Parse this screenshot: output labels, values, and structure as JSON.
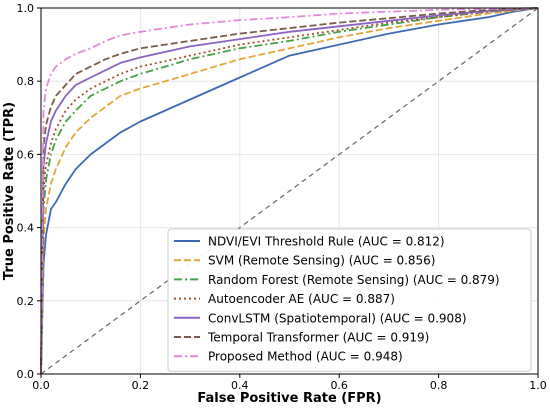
{
  "chart_data": {
    "type": "line",
    "xlabel": "False Positive Rate (FPR)",
    "ylabel": "True Positive Rate (TPR)",
    "xlim": [
      0.0,
      1.0
    ],
    "ylim": [
      0.0,
      1.0
    ],
    "xticks": [
      "0.0",
      "0.2",
      "0.4",
      "0.6",
      "0.8",
      "1.0"
    ],
    "yticks": [
      "0.0",
      "0.2",
      "0.4",
      "0.6",
      "0.8",
      "1.0"
    ],
    "grid": true,
    "legend_position": "lower-right",
    "reference_line": {
      "x": [
        0,
        1
      ],
      "y": [
        0,
        1
      ],
      "style": "dashed",
      "color": "#666666"
    },
    "series": [
      {
        "name": "NDVI/EVI Threshold Rule (AUC = 0.812)",
        "color": "#3d6ab5",
        "dash": "solid",
        "x": [
          0,
          0.005,
          0.01,
          0.02,
          0.03,
          0.05,
          0.07,
          0.1,
          0.13,
          0.16,
          0.2,
          0.25,
          0.3,
          0.35,
          0.4,
          0.45,
          0.5,
          0.6,
          0.7,
          0.8,
          0.9,
          0.95,
          1.0
        ],
        "y": [
          0,
          0.3,
          0.38,
          0.45,
          0.47,
          0.52,
          0.56,
          0.6,
          0.63,
          0.66,
          0.69,
          0.72,
          0.75,
          0.78,
          0.81,
          0.84,
          0.87,
          0.9,
          0.93,
          0.955,
          0.975,
          0.99,
          1.0
        ]
      },
      {
        "name": "SVM (Remote Sensing) (AUC = 0.856)",
        "color": "#e6a43a",
        "dash": "dashed",
        "x": [
          0,
          0.005,
          0.01,
          0.02,
          0.03,
          0.05,
          0.07,
          0.1,
          0.13,
          0.16,
          0.2,
          0.25,
          0.3,
          0.35,
          0.4,
          0.5,
          0.6,
          0.7,
          0.8,
          0.9,
          1.0
        ],
        "y": [
          0,
          0.37,
          0.45,
          0.52,
          0.56,
          0.62,
          0.66,
          0.7,
          0.73,
          0.76,
          0.78,
          0.8,
          0.82,
          0.84,
          0.86,
          0.89,
          0.92,
          0.945,
          0.965,
          0.985,
          1.0
        ]
      },
      {
        "name": "Random Forest (Remote Sensing) (AUC = 0.879)",
        "color": "#46a046",
        "dash": "dashdot",
        "x": [
          0,
          0.005,
          0.01,
          0.02,
          0.03,
          0.05,
          0.07,
          0.1,
          0.13,
          0.16,
          0.2,
          0.25,
          0.3,
          0.4,
          0.5,
          0.6,
          0.7,
          0.8,
          0.9,
          1.0
        ],
        "y": [
          0,
          0.45,
          0.53,
          0.6,
          0.64,
          0.69,
          0.72,
          0.76,
          0.78,
          0.8,
          0.82,
          0.84,
          0.86,
          0.89,
          0.91,
          0.935,
          0.955,
          0.975,
          0.99,
          1.0
        ]
      },
      {
        "name": "Autoencoder AE (AUC = 0.887)",
        "color": "#a0522d",
        "dash": "dotted",
        "x": [
          0,
          0.005,
          0.01,
          0.02,
          0.03,
          0.05,
          0.07,
          0.1,
          0.13,
          0.16,
          0.2,
          0.25,
          0.3,
          0.4,
          0.5,
          0.6,
          0.7,
          0.8,
          0.9,
          1.0
        ],
        "y": [
          0,
          0.5,
          0.57,
          0.63,
          0.67,
          0.72,
          0.75,
          0.78,
          0.8,
          0.82,
          0.84,
          0.855,
          0.87,
          0.9,
          0.92,
          0.94,
          0.96,
          0.975,
          0.99,
          1.0
        ]
      },
      {
        "name": "ConvLSTM (Spatiotemporal) (AUC = 0.908)",
        "color": "#8a63c4",
        "dash": "solid",
        "x": [
          0,
          0.005,
          0.01,
          0.02,
          0.03,
          0.05,
          0.07,
          0.1,
          0.13,
          0.16,
          0.2,
          0.25,
          0.3,
          0.4,
          0.5,
          0.6,
          0.7,
          0.8,
          0.9,
          1.0
        ],
        "y": [
          0,
          0.57,
          0.63,
          0.69,
          0.72,
          0.76,
          0.79,
          0.81,
          0.83,
          0.85,
          0.865,
          0.88,
          0.895,
          0.915,
          0.935,
          0.95,
          0.965,
          0.98,
          0.992,
          1.0
        ]
      },
      {
        "name": "Temporal Transformer (AUC = 0.919)",
        "color": "#7a5a4a",
        "dash": "dashed",
        "x": [
          0,
          0.005,
          0.01,
          0.02,
          0.03,
          0.05,
          0.07,
          0.1,
          0.13,
          0.16,
          0.2,
          0.25,
          0.3,
          0.4,
          0.5,
          0.6,
          0.7,
          0.8,
          0.9,
          1.0
        ],
        "y": [
          0,
          0.62,
          0.68,
          0.73,
          0.76,
          0.79,
          0.82,
          0.84,
          0.86,
          0.875,
          0.89,
          0.9,
          0.91,
          0.93,
          0.945,
          0.96,
          0.972,
          0.985,
          0.995,
          1.0
        ]
      },
      {
        "name": "Proposed Method (AUC = 0.948)",
        "color": "#e08ad8",
        "dash": "dashdot",
        "x": [
          0,
          0.005,
          0.01,
          0.02,
          0.03,
          0.05,
          0.07,
          0.1,
          0.13,
          0.16,
          0.2,
          0.25,
          0.3,
          0.4,
          0.5,
          0.6,
          0.7,
          0.8,
          0.9,
          1.0
        ],
        "y": [
          0,
          0.72,
          0.78,
          0.82,
          0.84,
          0.86,
          0.875,
          0.89,
          0.91,
          0.925,
          0.935,
          0.945,
          0.955,
          0.967,
          0.975,
          0.985,
          0.99,
          0.995,
          0.998,
          1.0
        ]
      }
    ]
  }
}
